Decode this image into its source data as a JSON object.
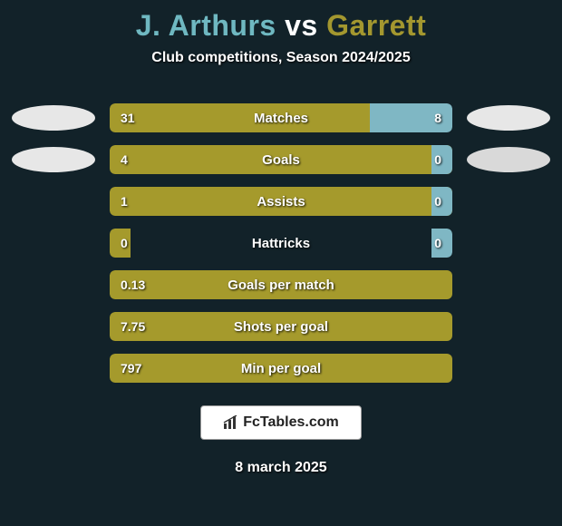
{
  "title": {
    "player1": "J. Arthurs",
    "vs": "vs",
    "player2": "Garrett",
    "player1_color": "#6fb8c1",
    "vs_color": "#ffffff",
    "player2_color": "#a3972f"
  },
  "subtitle": "Club competitions, Season 2024/2025",
  "colors": {
    "background": "#122229",
    "left_bar": "#a59a2c",
    "right_bar": "#7fb7c4",
    "ellipse_left_top": "#e7e7e7",
    "ellipse_left_bottom": "#e7e7e7",
    "ellipse_right_top": "#e7e7e7",
    "ellipse_right_bottom": "#d9d9d9"
  },
  "rows": [
    {
      "label": "Matches",
      "left_val": "31",
      "right_val": "8",
      "left_pct": 76,
      "right_pct": 24,
      "show_left_ellipse": true,
      "show_right_ellipse": true
    },
    {
      "label": "Goals",
      "left_val": "4",
      "right_val": "0",
      "left_pct": 100,
      "right_pct": 6,
      "show_left_ellipse": true,
      "show_right_ellipse": true
    },
    {
      "label": "Assists",
      "left_val": "1",
      "right_val": "0",
      "left_pct": 100,
      "right_pct": 6,
      "show_left_ellipse": false,
      "show_right_ellipse": false
    },
    {
      "label": "Hattricks",
      "left_val": "0",
      "right_val": "0",
      "left_pct": 6,
      "right_pct": 6,
      "show_left_ellipse": false,
      "show_right_ellipse": false
    },
    {
      "label": "Goals per match",
      "left_val": "0.13",
      "right_val": "",
      "left_pct": 100,
      "right_pct": 0,
      "show_left_ellipse": false,
      "show_right_ellipse": false
    },
    {
      "label": "Shots per goal",
      "left_val": "7.75",
      "right_val": "",
      "left_pct": 100,
      "right_pct": 0,
      "show_left_ellipse": false,
      "show_right_ellipse": false
    },
    {
      "label": "Min per goal",
      "left_val": "797",
      "right_val": "",
      "left_pct": 100,
      "right_pct": 0,
      "show_left_ellipse": false,
      "show_right_ellipse": false
    }
  ],
  "footer": {
    "brand": "FcTables.com",
    "date": "8 march 2025"
  }
}
